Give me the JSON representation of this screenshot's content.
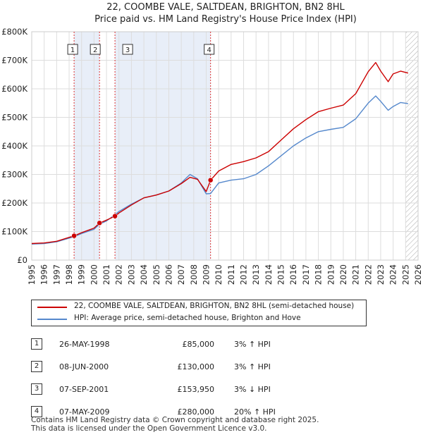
{
  "chart_data": {
    "type": "line",
    "title": "22, COOMBE VALE, SALTDEAN, BRIGHTON, BN2 8HL",
    "subtitle": "Price paid vs. HM Land Registry's House Price Index (HPI)",
    "ylim": [
      0,
      800000
    ],
    "xlim": [
      1995,
      2026
    ],
    "y_ticks": [
      {
        "v": 0,
        "label": "£0"
      },
      {
        "v": 100000,
        "label": "£100K"
      },
      {
        "v": 200000,
        "label": "£200K"
      },
      {
        "v": 300000,
        "label": "£300K"
      },
      {
        "v": 400000,
        "label": "£400K"
      },
      {
        "v": 500000,
        "label": "£500K"
      },
      {
        "v": 600000,
        "label": "£600K"
      },
      {
        "v": 700000,
        "label": "£700K"
      },
      {
        "v": 800000,
        "label": "£800K"
      }
    ],
    "x_ticks": [
      "1995",
      "1996",
      "1997",
      "1998",
      "1999",
      "2000",
      "2001",
      "2002",
      "2003",
      "2004",
      "2005",
      "2006",
      "2007",
      "2008",
      "2009",
      "2010",
      "2011",
      "2012",
      "2013",
      "2014",
      "2015",
      "2016",
      "2017",
      "2018",
      "2019",
      "2020",
      "2021",
      "2022",
      "2023",
      "2024",
      "2025",
      "2026"
    ],
    "shaded_ranges": [
      [
        1998.4,
        2000.44
      ],
      [
        2001.68,
        2009.35
      ]
    ],
    "hatch_from": 2025.0,
    "series": [
      {
        "name": "22, COOMBE VALE, SALTDEAN, BRIGHTON, BN2 8HL (semi-detached house)",
        "color": "#cc0000",
        "points": [
          [
            1995,
            58000
          ],
          [
            1996,
            60000
          ],
          [
            1997,
            66000
          ],
          [
            1998.4,
            85000
          ],
          [
            1999,
            96000
          ],
          [
            2000,
            112000
          ],
          [
            2000.44,
            130000
          ],
          [
            2001,
            140000
          ],
          [
            2001.68,
            153950
          ],
          [
            2002,
            165000
          ],
          [
            2003,
            193000
          ],
          [
            2004,
            218000
          ],
          [
            2005,
            228000
          ],
          [
            2006,
            242000
          ],
          [
            2007,
            268000
          ],
          [
            2007.7,
            290000
          ],
          [
            2008.3,
            283000
          ],
          [
            2009,
            240000
          ],
          [
            2009.35,
            280000
          ],
          [
            2010,
            312000
          ],
          [
            2011,
            335000
          ],
          [
            2012,
            345000
          ],
          [
            2013,
            358000
          ],
          [
            2014,
            380000
          ],
          [
            2015,
            420000
          ],
          [
            2016,
            460000
          ],
          [
            2017,
            492000
          ],
          [
            2018,
            520000
          ],
          [
            2019,
            532000
          ],
          [
            2020,
            543000
          ],
          [
            2021,
            583000
          ],
          [
            2022,
            660000
          ],
          [
            2022.6,
            692000
          ],
          [
            2023,
            662000
          ],
          [
            2023.6,
            625000
          ],
          [
            2024,
            652000
          ],
          [
            2024.6,
            662000
          ],
          [
            2025.2,
            655000
          ]
        ]
      },
      {
        "name": "HPI: Average price, semi-detached house, Brighton and Hove",
        "color": "#5588cc",
        "points": [
          [
            1995,
            56000
          ],
          [
            1996,
            58000
          ],
          [
            1997,
            64000
          ],
          [
            1998.4,
            82000
          ],
          [
            1999,
            93000
          ],
          [
            2000,
            108000
          ],
          [
            2000.44,
            126000
          ],
          [
            2001,
            137000
          ],
          [
            2001.68,
            159000
          ],
          [
            2002,
            170000
          ],
          [
            2003,
            196000
          ],
          [
            2004,
            218000
          ],
          [
            2005,
            228000
          ],
          [
            2006,
            242000
          ],
          [
            2007,
            270000
          ],
          [
            2007.7,
            300000
          ],
          [
            2008.3,
            285000
          ],
          [
            2009,
            232000
          ],
          [
            2009.35,
            233000
          ],
          [
            2010,
            270000
          ],
          [
            2011,
            280000
          ],
          [
            2012,
            285000
          ],
          [
            2013,
            300000
          ],
          [
            2014,
            330000
          ],
          [
            2015,
            365000
          ],
          [
            2016,
            400000
          ],
          [
            2017,
            428000
          ],
          [
            2018,
            450000
          ],
          [
            2019,
            458000
          ],
          [
            2020,
            465000
          ],
          [
            2021,
            495000
          ],
          [
            2022,
            550000
          ],
          [
            2022.6,
            575000
          ],
          [
            2023,
            556000
          ],
          [
            2023.6,
            525000
          ],
          [
            2024,
            538000
          ],
          [
            2024.6,
            552000
          ],
          [
            2025.2,
            548000
          ]
        ]
      }
    ],
    "sales": [
      {
        "num": "1",
        "x": 1998.4,
        "y": 85000
      },
      {
        "num": "2",
        "x": 2000.44,
        "y": 130000
      },
      {
        "num": "3",
        "x": 2001.68,
        "y": 153950
      },
      {
        "num": "4",
        "x": 2009.35,
        "y": 280000
      }
    ]
  },
  "legend": {
    "property_label": "22, COOMBE VALE, SALTDEAN, BRIGHTON, BN2 8HL (semi-detached house)",
    "hpi_label": "HPI: Average price, semi-detached house, Brighton and Hove",
    "property_color": "#cc0000",
    "hpi_color": "#5588cc"
  },
  "transactions": [
    {
      "num": "1",
      "date": "26-MAY-1998",
      "price": "£85,000",
      "hpi": "3% ↑ HPI"
    },
    {
      "num": "2",
      "date": "08-JUN-2000",
      "price": "£130,000",
      "hpi": "3% ↑ HPI"
    },
    {
      "num": "3",
      "date": "07-SEP-2001",
      "price": "£153,950",
      "hpi": "3% ↓ HPI"
    },
    {
      "num": "4",
      "date": "07-MAY-2009",
      "price": "£280,000",
      "hpi": "20% ↑ HPI"
    }
  ],
  "footer": {
    "line1": "Contains HM Land Registry data © Crown copyright and database right 2025.",
    "line2": "This data is licensed under the Open Government Licence v3.0."
  }
}
